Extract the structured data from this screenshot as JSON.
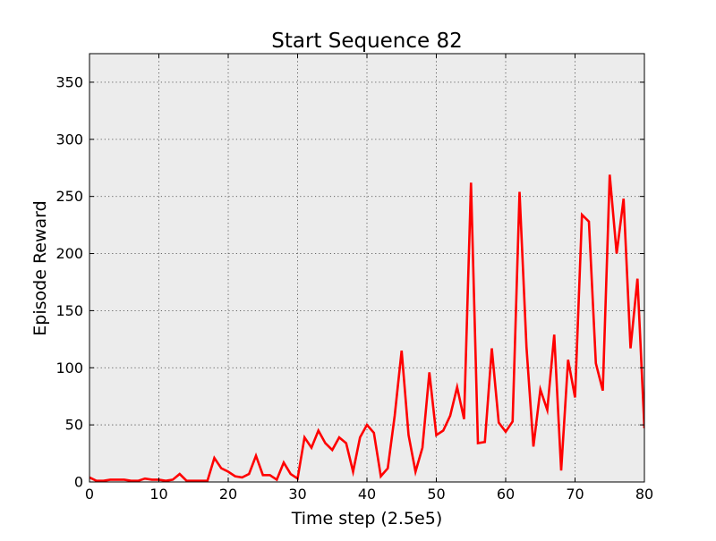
{
  "chart_data": {
    "type": "line",
    "title": "Start Sequence 82",
    "xlabel": "Time step (2.5e5)",
    "ylabel": "Episode Reward",
    "xlim": [
      0,
      80
    ],
    "ylim": [
      0,
      375
    ],
    "xticks": [
      0,
      10,
      20,
      30,
      40,
      50,
      60,
      70,
      80
    ],
    "yticks": [
      0,
      50,
      100,
      150,
      200,
      250,
      300,
      350
    ],
    "xtick_labels": [
      "0",
      "10",
      "20",
      "30",
      "40",
      "50",
      "60",
      "70",
      "80"
    ],
    "ytick_labels": [
      "0",
      "50",
      "100",
      "150",
      "200",
      "250",
      "300",
      "350"
    ],
    "grid": true,
    "background_color": "#ececec",
    "series": [
      {
        "color": "#ff0000",
        "x": [
          0,
          1,
          2,
          3,
          4,
          5,
          6,
          7,
          8,
          9,
          10,
          11,
          12,
          13,
          14,
          15,
          16,
          17,
          18,
          19,
          20,
          21,
          22,
          23,
          24,
          25,
          26,
          27,
          28,
          29,
          30,
          31,
          32,
          33,
          34,
          35,
          36,
          37,
          38,
          39,
          40,
          41,
          42,
          43,
          44,
          45,
          46,
          47,
          48,
          49,
          50,
          51,
          52,
          53,
          54,
          55,
          56,
          57,
          58,
          59,
          60,
          61,
          62,
          63,
          64,
          65,
          66,
          67,
          68,
          69,
          70,
          71,
          72,
          73,
          74,
          75,
          76,
          77,
          78,
          79,
          80
        ],
        "y": [
          4,
          1,
          1,
          2,
          2,
          2,
          1,
          1,
          3,
          2,
          2,
          1,
          2,
          7,
          1,
          1,
          1,
          1,
          21,
          12,
          9,
          5,
          4,
          7,
          23,
          6,
          6,
          2,
          17,
          7,
          3,
          39,
          30,
          45,
          34,
          28,
          39,
          34,
          9,
          39,
          50,
          43,
          5,
          12,
          58,
          115,
          41,
          9,
          30,
          96,
          41,
          45,
          58,
          83,
          55,
          262,
          34,
          35,
          117,
          52,
          44,
          53,
          254,
          118,
          31,
          81,
          63,
          129,
          10,
          107,
          74,
          234,
          228,
          104,
          80,
          269,
          200,
          248,
          117,
          178,
          47
        ]
      }
    ]
  }
}
